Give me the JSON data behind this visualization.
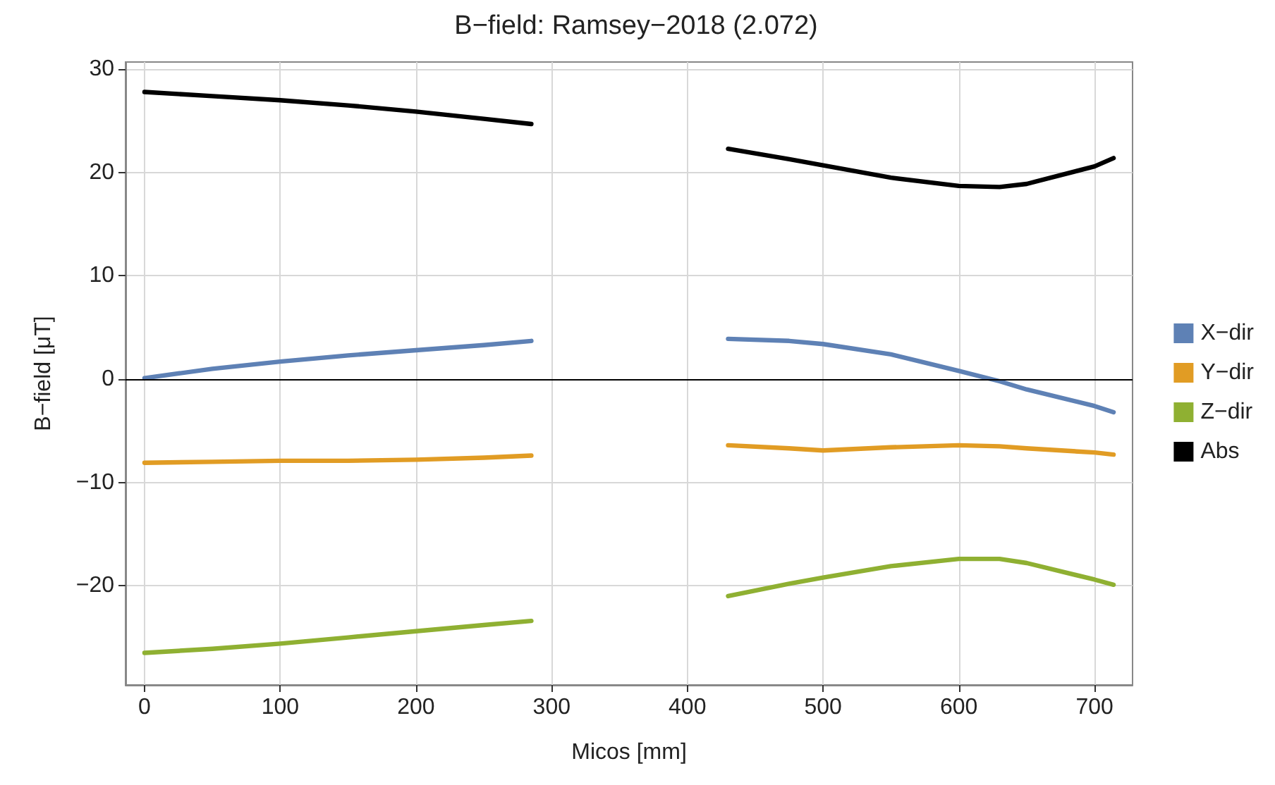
{
  "chart_data": {
    "type": "line",
    "title": "B−field: Ramsey−2018 (2.072)",
    "xlabel": "Micos [mm]",
    "ylabel": "B−field [μT]",
    "x": [
      0,
      50,
      100,
      150,
      200,
      250,
      285,
      357,
      430,
      475,
      500,
      550,
      600,
      630,
      650,
      700,
      714
    ],
    "series": [
      {
        "name": "X−dir",
        "color": "#5e81b5",
        "values": [
          0.1,
          1.0,
          1.7,
          2.3,
          2.8,
          3.3,
          3.7,
          null,
          3.9,
          3.7,
          3.4,
          2.4,
          0.8,
          -0.2,
          -1.0,
          -2.6,
          -3.2
        ]
      },
      {
        "name": "Y−dir",
        "color": "#e19c24",
        "values": [
          -8.1,
          -8.0,
          -7.9,
          -7.9,
          -7.8,
          -7.6,
          -7.4,
          null,
          -6.4,
          -6.7,
          -6.9,
          -6.6,
          -6.4,
          -6.5,
          -6.7,
          -7.1,
          -7.3
        ]
      },
      {
        "name": "Z−dir",
        "color": "#8fb032",
        "values": [
          -26.5,
          -26.1,
          -25.6,
          -25.0,
          -24.4,
          -23.8,
          -23.4,
          null,
          -21.0,
          -19.8,
          -19.2,
          -18.1,
          -17.4,
          -17.4,
          -17.8,
          -19.4,
          -19.9
        ]
      },
      {
        "name": "Abs",
        "color": "#000000",
        "values": [
          27.8,
          27.4,
          27.0,
          26.5,
          25.9,
          25.2,
          24.7,
          null,
          22.3,
          21.3,
          20.7,
          19.5,
          18.7,
          18.6,
          18.9,
          20.6,
          21.4
        ]
      }
    ],
    "xlim": [
      -14,
      728
    ],
    "xticks": [
      0,
      100,
      200,
      300,
      400,
      500,
      600,
      700
    ],
    "ylim": [
      -29.6,
      30.7
    ],
    "yticks": [
      -20,
      -10,
      0,
      10,
      20,
      30
    ],
    "ref_lines": [
      {
        "axis": "y",
        "value": 0,
        "color": "#000000"
      }
    ],
    "grid": true,
    "legend": "right",
    "marker": "none",
    "line_style": "solid"
  }
}
